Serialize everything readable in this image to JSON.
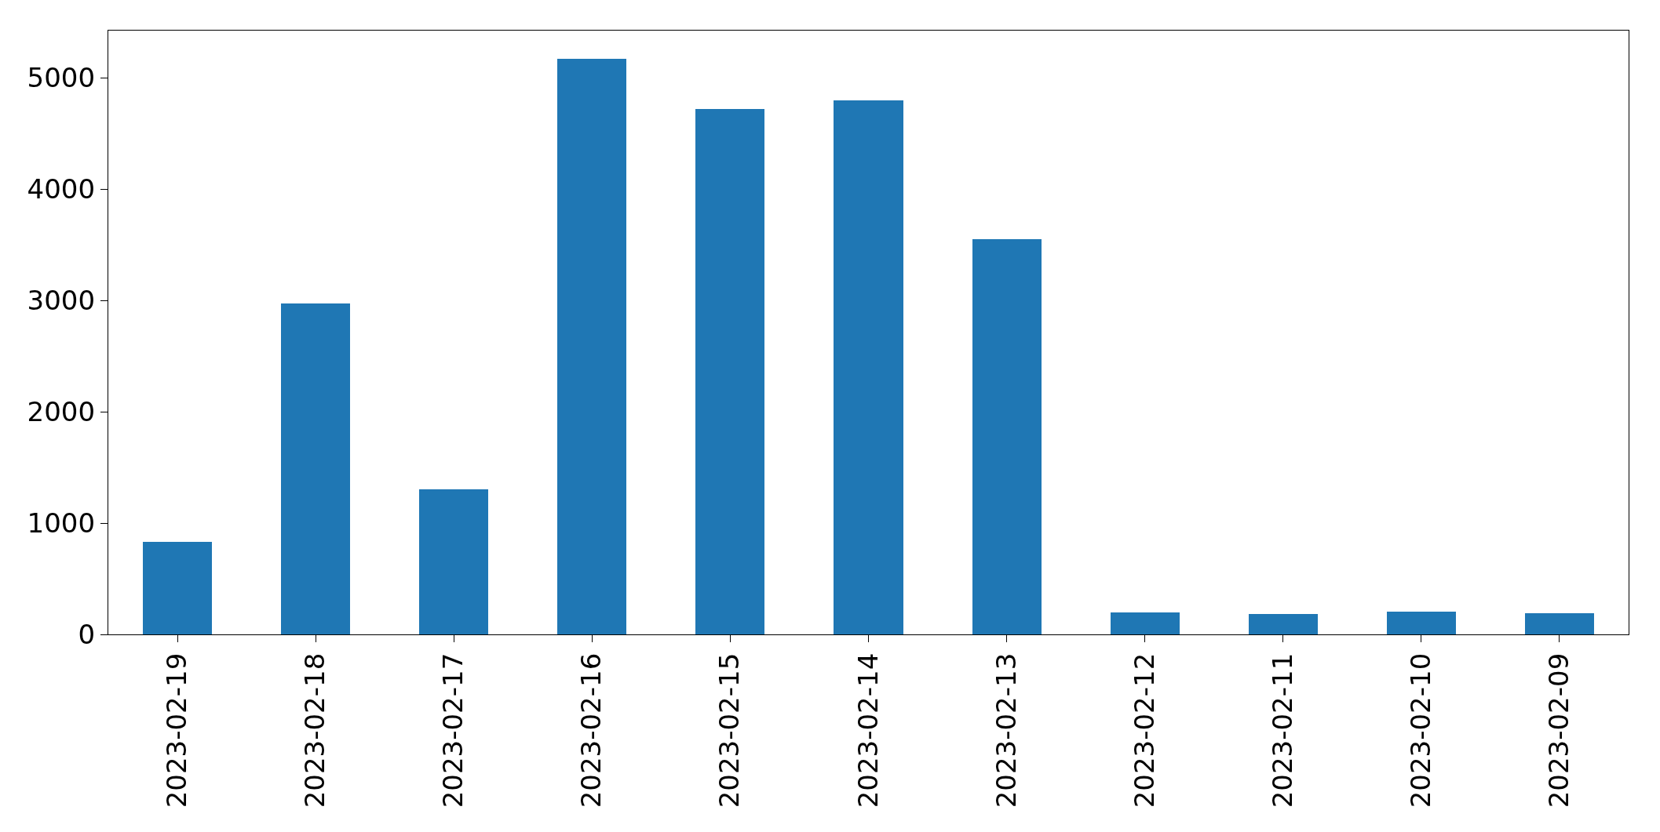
{
  "chart_data": {
    "type": "bar",
    "categories": [
      "2023-02-19",
      "2023-02-18",
      "2023-02-17",
      "2023-02-16",
      "2023-02-15",
      "2023-02-14",
      "2023-02-13",
      "2023-02-12",
      "2023-02-11",
      "2023-02-10",
      "2023-02-09"
    ],
    "values": [
      830,
      2970,
      1300,
      5170,
      4720,
      4800,
      3550,
      200,
      185,
      205,
      190
    ],
    "color": "#1f77b4",
    "ylim": [
      0,
      5425
    ],
    "yticks": [
      0,
      1000,
      2000,
      3000,
      4000,
      5000
    ]
  }
}
